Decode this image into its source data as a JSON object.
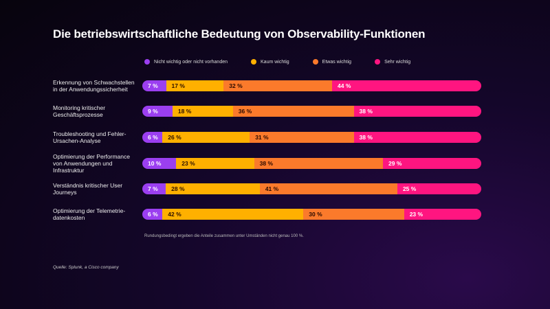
{
  "chart_data": {
    "type": "bar",
    "orientation": "horizontal",
    "stacked": true,
    "title": "Die betriebswirtschaftliche Bedeutung von Observability-Funktionen",
    "legend_position": "top",
    "categories": [
      "Erkennung von Schwachstellen in der Anwendungssicherheit",
      "Monitoring kritischer Geschäftsprozesse",
      "Troubleshooting und Fehler-Ursachen-Analyse",
      "Optimierung der Performance von Anwendungen und Infrastruktur",
      "Verständnis kritischer User Journeys",
      "Optimierung der Telemetrie-datenkosten"
    ],
    "series": [
      {
        "name": "Nicht wichtig oder nicht vorhanden",
        "color": "#9b3ff0",
        "text_color": "#ffffff",
        "values": [
          7,
          9,
          6,
          10,
          7,
          6
        ]
      },
      {
        "name": "Kaum wichtig",
        "color": "#ffb000",
        "text_color": "#2a1000",
        "values": [
          17,
          18,
          26,
          23,
          28,
          42
        ]
      },
      {
        "name": "Etwas wichtig",
        "color": "#fb7a2b",
        "text_color": "#2a0a00",
        "values": [
          32,
          36,
          31,
          38,
          41,
          30
        ]
      },
      {
        "name": "Sehr wichtig",
        "color": "#ff1580",
        "text_color": "#ffffff",
        "values": [
          44,
          38,
          38,
          29,
          25,
          23
        ]
      }
    ],
    "value_suffix": " %",
    "note": "Rundungsbedingt ergeben die Anteile zusammen unter Umständen nicht genau 100 %.",
    "source": "Quelle: Splunk, a Cisco company"
  }
}
